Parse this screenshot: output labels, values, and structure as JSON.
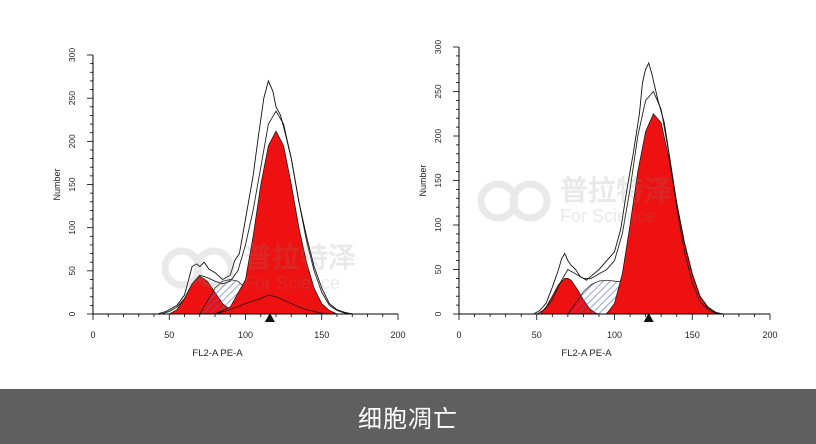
{
  "caption": "细胞凋亡",
  "watermark": {
    "brand_cn": "普拉特泽",
    "brand_en": "For Science",
    "logo_icon": "interlocking-rings-logo-icon"
  },
  "colors": {
    "fill_red": "#ee1111",
    "hatch_blue": "#5566bb",
    "caption_bg": "#5f5f5f"
  },
  "chart_data": [
    {
      "type": "area",
      "xlabel": "FL2-A PE-A",
      "ylabel": "Number",
      "xlim": [
        0,
        200
      ],
      "ylim": [
        0,
        300
      ],
      "x_ticks": [
        0,
        50,
        100,
        150,
        200
      ],
      "y_ticks": [
        0,
        50,
        100,
        150,
        200,
        250,
        300
      ],
      "marker_x": 116,
      "grid": false,
      "series": [
        {
          "x": [
            42,
            48,
            55,
            60,
            65,
            68,
            70,
            73,
            76,
            80,
            85,
            90,
            93,
            96,
            100,
            105,
            108,
            112,
            115,
            118,
            120,
            123,
            126,
            130,
            135,
            140,
            145,
            150,
            155,
            160,
            165,
            170
          ],
          "y": [
            0,
            3,
            10,
            22,
            55,
            58,
            55,
            60,
            52,
            48,
            40,
            45,
            62,
            70,
            110,
            160,
            200,
            250,
            270,
            258,
            240,
            230,
            210,
            180,
            130,
            90,
            55,
            30,
            12,
            5,
            2,
            0
          ]
        },
        {
          "x": [
            45,
            50,
            55,
            60,
            65,
            70,
            75,
            80,
            85,
            90,
            95,
            100,
            105,
            110,
            115,
            120,
            125,
            130,
            135,
            140,
            145,
            150,
            155,
            160,
            165,
            170
          ],
          "y": [
            0,
            3,
            8,
            18,
            35,
            45,
            42,
            38,
            35,
            38,
            50,
            80,
            120,
            170,
            220,
            235,
            220,
            180,
            130,
            85,
            50,
            25,
            10,
            4,
            1,
            0
          ]
        },
        {
          "x": [
            50,
            55,
            60,
            65,
            70,
            75,
            80,
            85,
            90,
            95,
            100,
            105,
            110
          ],
          "y": [
            0,
            5,
            18,
            35,
            44,
            38,
            25,
            12,
            5,
            2,
            0,
            0,
            0
          ]
        },
        {
          "x": [
            70,
            75,
            80,
            85,
            90,
            95,
            100,
            105,
            110,
            115
          ],
          "y": [
            0,
            15,
            30,
            38,
            40,
            38,
            30,
            20,
            10,
            2
          ]
        },
        {
          "x": [
            80,
            90,
            100,
            105,
            110,
            115,
            120,
            125,
            130,
            135,
            140,
            145,
            150,
            155,
            160
          ],
          "y": [
            0,
            8,
            40,
            90,
            150,
            195,
            212,
            195,
            150,
            100,
            60,
            30,
            12,
            4,
            0
          ]
        },
        {
          "x": [
            80,
            90,
            100,
            110,
            115,
            120,
            125,
            130,
            135,
            140,
            145,
            150,
            155
          ],
          "y": [
            0,
            5,
            12,
            18,
            22,
            20,
            16,
            12,
            8,
            5,
            3,
            1,
            0
          ]
        }
      ]
    },
    {
      "type": "area",
      "xlabel": "FL2-A PE-A",
      "ylabel": "Number",
      "xlim": [
        0,
        200
      ],
      "ylim": [
        0,
        300
      ],
      "x_ticks": [
        0,
        50,
        100,
        150,
        200
      ],
      "y_ticks": [
        0,
        50,
        100,
        150,
        200,
        250,
        300
      ],
      "marker_x": 122,
      "grid": false,
      "series": [
        {
          "x": [
            48,
            52,
            56,
            60,
            64,
            66,
            68,
            70,
            72,
            75,
            78,
            82,
            86,
            90,
            94,
            98,
            100,
            104,
            108,
            112,
            116,
            118,
            120,
            122,
            124,
            126,
            128,
            132,
            136,
            140,
            145,
            150,
            155,
            160,
            165,
            168
          ],
          "y": [
            0,
            4,
            12,
            30,
            50,
            62,
            68,
            60,
            55,
            50,
            42,
            38,
            44,
            50,
            58,
            66,
            70,
            95,
            140,
            180,
            225,
            260,
            275,
            282,
            270,
            255,
            240,
            215,
            170,
            125,
            80,
            45,
            20,
            8,
            2,
            0
          ]
        },
        {
          "x": [
            50,
            55,
            60,
            65,
            70,
            75,
            80,
            85,
            90,
            95,
            100,
            105,
            110,
            115,
            120,
            125,
            130,
            135,
            140,
            145,
            150,
            155,
            160,
            165,
            170
          ],
          "y": [
            0,
            5,
            16,
            35,
            50,
            45,
            40,
            40,
            45,
            50,
            60,
            90,
            140,
            200,
            240,
            250,
            230,
            180,
            120,
            70,
            35,
            14,
            5,
            1,
            0
          ]
        },
        {
          "x": [
            52,
            56,
            60,
            64,
            68,
            70,
            72,
            76,
            80,
            84,
            88,
            90
          ],
          "y": [
            0,
            8,
            20,
            33,
            40,
            40,
            38,
            28,
            16,
            6,
            1,
            0
          ]
        },
        {
          "x": [
            70,
            75,
            80,
            85,
            90,
            95,
            100,
            105,
            110,
            115,
            120,
            125,
            130,
            135,
            140,
            145,
            150
          ],
          "y": [
            0,
            12,
            25,
            33,
            37,
            38,
            37,
            36,
            33,
            28,
            22,
            16,
            10,
            5,
            2,
            1,
            0
          ]
        },
        {
          "x": [
            95,
            100,
            105,
            110,
            115,
            120,
            125,
            130,
            135,
            140,
            145,
            150,
            155,
            160,
            165,
            170
          ],
          "y": [
            0,
            12,
            45,
            100,
            160,
            205,
            225,
            215,
            175,
            125,
            80,
            45,
            20,
            7,
            2,
            0
          ]
        }
      ]
    }
  ]
}
